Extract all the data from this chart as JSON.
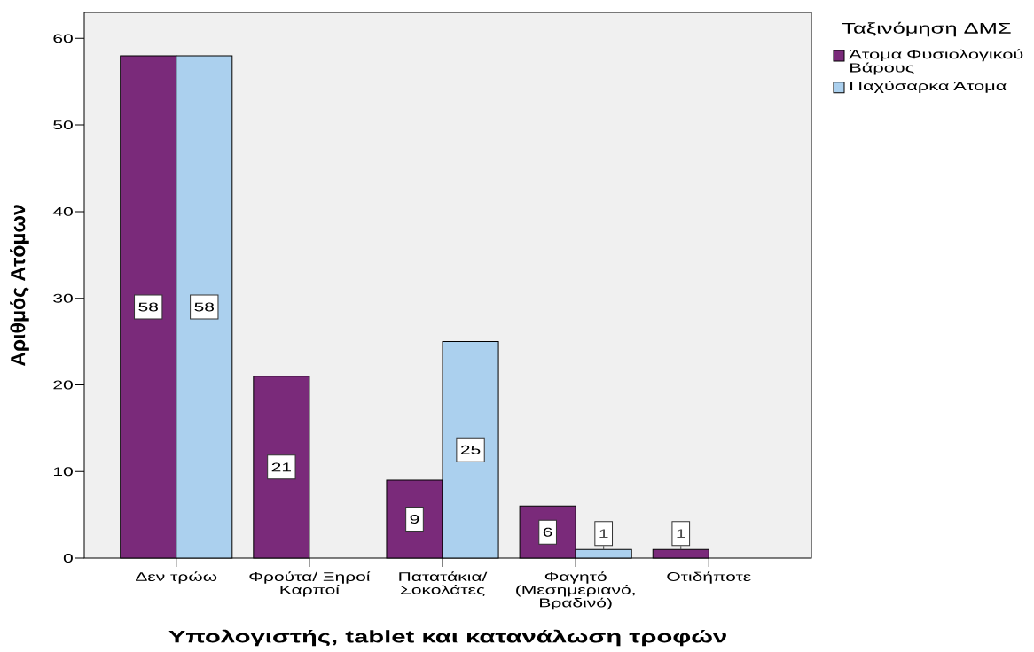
{
  "chart_data": {
    "type": "bar",
    "xlabel": "Υπολογιστής, tablet και κατανάλωση τροφών",
    "ylabel": "Αριθμός Ατόμων",
    "legend_title": "Ταξινόμηση ΔΜΣ",
    "categories": [
      "Δεν τρώω",
      "Φρούτα/ Ξηροί Καρποί",
      "Πατατάκια/ Σοκολάτες",
      "Φαγητό (Μεσημεριανό, Βραδινό)",
      "Οτιδήποτε"
    ],
    "series": [
      {
        "name": "Άτομα Φυσιολογικού Βάρους",
        "color": "#7a2a7a",
        "values": [
          58,
          21,
          9,
          6,
          1
        ]
      },
      {
        "name": "Παχύσαρκα Άτομα",
        "color": "#abd0ee",
        "values": [
          58,
          null,
          25,
          1,
          null
        ]
      }
    ],
    "ylim": [
      0,
      63
    ],
    "yticks": [
      0,
      10,
      20,
      30,
      40,
      50,
      60
    ],
    "data_labels": true,
    "legend": "top right"
  }
}
